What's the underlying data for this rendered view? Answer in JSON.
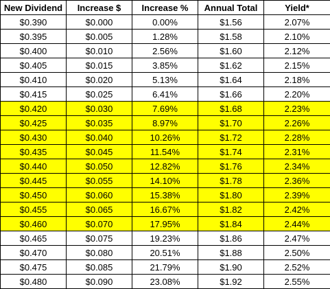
{
  "highlight_color": "#ffff00",
  "headers": [
    "New Dividend",
    "Increase $",
    "Increase %",
    "Annual Total",
    "Yield*"
  ],
  "rows": [
    {
      "cells": [
        "$0.390",
        "$0.000",
        "0.00%",
        "$1.56",
        "2.07%"
      ],
      "highlighted": false
    },
    {
      "cells": [
        "$0.395",
        "$0.005",
        "1.28%",
        "$1.58",
        "2.10%"
      ],
      "highlighted": false
    },
    {
      "cells": [
        "$0.400",
        "$0.010",
        "2.56%",
        "$1.60",
        "2.12%"
      ],
      "highlighted": false
    },
    {
      "cells": [
        "$0.405",
        "$0.015",
        "3.85%",
        "$1.62",
        "2.15%"
      ],
      "highlighted": false
    },
    {
      "cells": [
        "$0.410",
        "$0.020",
        "5.13%",
        "$1.64",
        "2.18%"
      ],
      "highlighted": false
    },
    {
      "cells": [
        "$0.415",
        "$0.025",
        "6.41%",
        "$1.66",
        "2.20%"
      ],
      "highlighted": false
    },
    {
      "cells": [
        "$0.420",
        "$0.030",
        "7.69%",
        "$1.68",
        "2.23%"
      ],
      "highlighted": true
    },
    {
      "cells": [
        "$0.425",
        "$0.035",
        "8.97%",
        "$1.70",
        "2.26%"
      ],
      "highlighted": true
    },
    {
      "cells": [
        "$0.430",
        "$0.040",
        "10.26%",
        "$1.72",
        "2.28%"
      ],
      "highlighted": true
    },
    {
      "cells": [
        "$0.435",
        "$0.045",
        "11.54%",
        "$1.74",
        "2.31%"
      ],
      "highlighted": true
    },
    {
      "cells": [
        "$0.440",
        "$0.050",
        "12.82%",
        "$1.76",
        "2.34%"
      ],
      "highlighted": true
    },
    {
      "cells": [
        "$0.445",
        "$0.055",
        "14.10%",
        "$1.78",
        "2.36%"
      ],
      "highlighted": true
    },
    {
      "cells": [
        "$0.450",
        "$0.060",
        "15.38%",
        "$1.80",
        "2.39%"
      ],
      "highlighted": true
    },
    {
      "cells": [
        "$0.455",
        "$0.065",
        "16.67%",
        "$1.82",
        "2.42%"
      ],
      "highlighted": true
    },
    {
      "cells": [
        "$0.460",
        "$0.070",
        "17.95%",
        "$1.84",
        "2.44%"
      ],
      "highlighted": true
    },
    {
      "cells": [
        "$0.465",
        "$0.075",
        "19.23%",
        "$1.86",
        "2.47%"
      ],
      "highlighted": false
    },
    {
      "cells": [
        "$0.470",
        "$0.080",
        "20.51%",
        "$1.88",
        "2.50%"
      ],
      "highlighted": false
    },
    {
      "cells": [
        "$0.475",
        "$0.085",
        "21.79%",
        "$1.90",
        "2.52%"
      ],
      "highlighted": false
    },
    {
      "cells": [
        "$0.480",
        "$0.090",
        "23.08%",
        "$1.92",
        "2.55%"
      ],
      "highlighted": false
    }
  ]
}
